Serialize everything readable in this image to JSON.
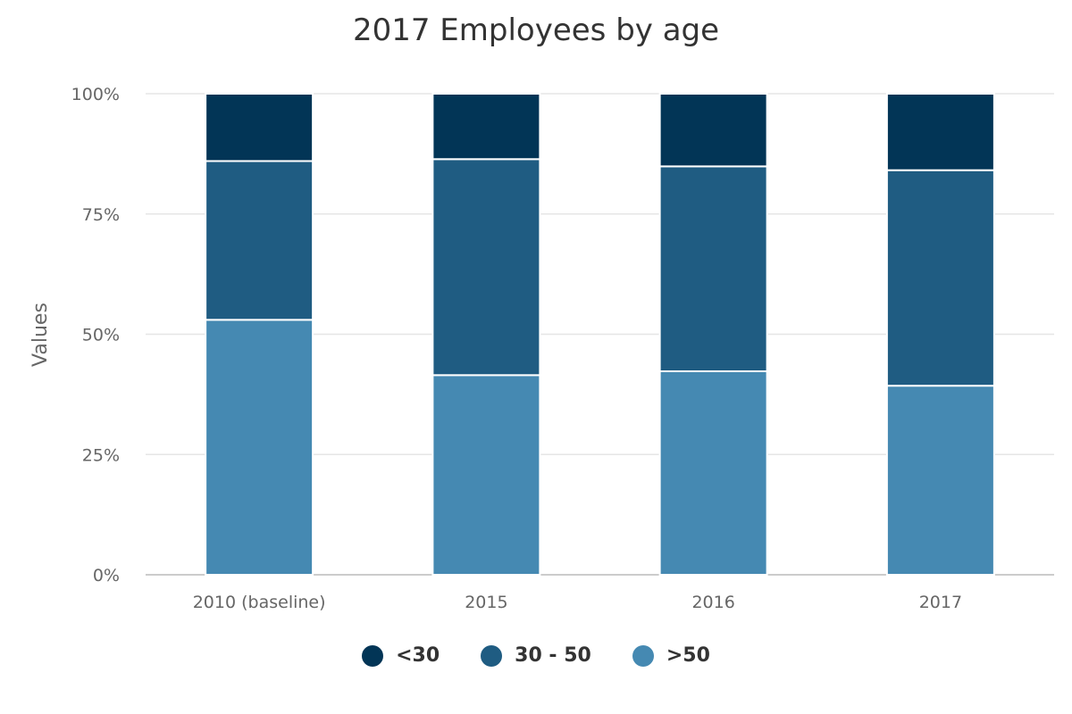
{
  "chart_data": {
    "type": "bar",
    "stacked": true,
    "title": "2017 Employees by age",
    "xlabel": "",
    "ylabel": "Values",
    "ylim": [
      0,
      100
    ],
    "yticks": [
      "0%",
      "25%",
      "50%",
      "75%",
      "100%"
    ],
    "grid": true,
    "legend_position": "bottom-center",
    "categories": [
      "2010 (baseline)",
      "2015",
      "2016",
      "2017"
    ],
    "series": [
      {
        "name": ">50",
        "color": "#4589b2",
        "values": [
          53,
          41.5,
          42.3,
          39.3
        ]
      },
      {
        "name": "30 - 50",
        "color": "#1f5c82",
        "values": [
          33,
          44.9,
          42.6,
          44.8
        ]
      },
      {
        "name": "<30",
        "color": "#023556",
        "values": [
          14,
          13.6,
          15.1,
          15.9
        ]
      }
    ],
    "legend_order": [
      "<30",
      "30 - 50",
      ">50"
    ]
  }
}
